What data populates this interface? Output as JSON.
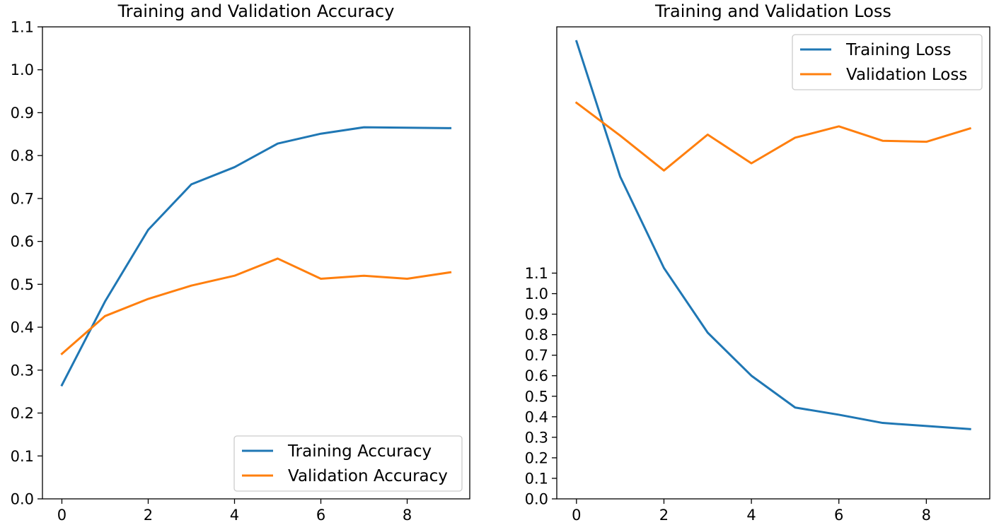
{
  "chart_data": [
    {
      "type": "line",
      "title": "Training and Validation Accuracy",
      "xlabel": "",
      "ylabel": "",
      "x": [
        0,
        1,
        2,
        3,
        4,
        5,
        6,
        7,
        8,
        9
      ],
      "xlim": [
        -0.45,
        9.45
      ],
      "ylim": [
        0.0,
        1.1
      ],
      "xticks": [
        0,
        2,
        4,
        6,
        8
      ],
      "yticks": [
        0.0,
        0.1,
        0.2,
        0.3,
        0.4,
        0.5,
        0.6,
        0.7,
        0.8,
        0.9,
        1.0,
        1.1
      ],
      "grid": false,
      "legend_position": "lower-right",
      "series": [
        {
          "name": "Training Accuracy",
          "color": "#1f77b4",
          "values": [
            0.265,
            0.46,
            0.627,
            0.733,
            0.773,
            0.828,
            0.851,
            0.866,
            0.865,
            0.864
          ]
        },
        {
          "name": "Validation Accuracy",
          "color": "#ff7f0e",
          "values": [
            0.338,
            0.426,
            0.466,
            0.497,
            0.52,
            0.56,
            0.513,
            0.52,
            0.513,
            0.528
          ]
        }
      ]
    },
    {
      "type": "line",
      "title": "Training and Validation Loss",
      "xlabel": "",
      "ylabel": "",
      "x": [
        0,
        1,
        2,
        3,
        4,
        5,
        6,
        7,
        8,
        9
      ],
      "xlim": [
        -0.45,
        9.45
      ],
      "ylim": [
        0.0,
        2.3
      ],
      "xticks": [
        0,
        2,
        4,
        6,
        8
      ],
      "yticks": [
        0.0,
        0.1,
        0.2,
        0.3,
        0.4,
        0.5,
        0.6,
        0.7,
        0.8,
        0.9,
        1.0,
        1.1
      ],
      "grid": false,
      "legend_position": "top-right",
      "series": [
        {
          "name": "Training Loss",
          "color": "#1f77b4",
          "values": [
            2.23,
            1.57,
            1.125,
            0.81,
            0.6,
            0.445,
            0.41,
            0.37,
            0.355,
            0.34
          ]
        },
        {
          "name": "Validation Loss",
          "color": "#ff7f0e",
          "values": [
            1.93,
            1.77,
            1.6,
            1.775,
            1.635,
            1.76,
            1.815,
            1.745,
            1.74,
            1.805
          ]
        }
      ]
    }
  ]
}
